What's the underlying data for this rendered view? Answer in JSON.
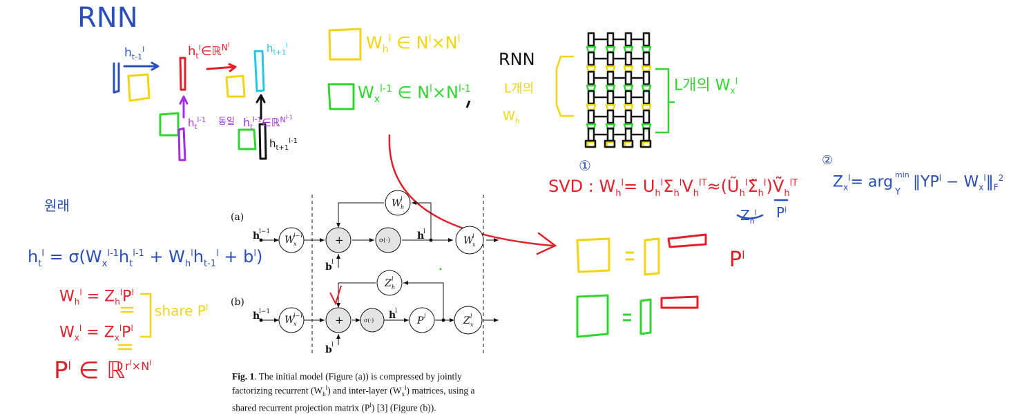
{
  "annotations": {
    "title": "RNN",
    "top_left": {
      "h_prev_label": "h",
      "h_prev_sub": "t-1",
      "h_prev_sup": "l",
      "h_t_label": "h",
      "h_t_sub": "t",
      "h_t_sup": "l",
      "h_t_space": "∈ℝ",
      "h_t_space_sup": "N",
      "h_t_space_sup2": "l",
      "h_next_label": "h",
      "h_next_sub": "t+1",
      "h_next_sup": "l",
      "h_lower_label": "h",
      "h_lower_sub": "t",
      "h_lower_sup": "l-1",
      "same_label": "동일",
      "h_lower2_label": "h",
      "h_lower2_sub": "t",
      "h_lower2_sup": "l-1",
      "h_lower2_space": "∈ℝ",
      "h_lower2_space_sup": "N",
      "h_lower2_space_sup2": "l-1",
      "h_lower3_label": "h",
      "h_lower3_sub": "t+1",
      "h_lower3_sup": "l-1"
    },
    "top_middle": {
      "wh_label": "W",
      "wh_sub": "h",
      "wh_sup": "l",
      "wh_space": "∈ N",
      "wh_dim1_sup": "l",
      "wh_dim_x": "×N",
      "wh_dim2_sup": "l",
      "wx_label": "W",
      "wx_sub": "x",
      "wx_sup": "l-1",
      "wx_space": "∈ N",
      "wx_dim1_sup": "l",
      "wx_dim_x": "×N",
      "wx_dim2_sup": "l-1"
    },
    "top_right": {
      "rnn": "RNN",
      "l_count": "L개의",
      "wh_label": "W",
      "wh_sub": "h",
      "l_count_wx": "L개의 W",
      "l_count_wx_sub": "x",
      "l_count_wx_sup": "l"
    },
    "svd": {
      "num1": "①",
      "text": "SVD : W",
      "text_sub": "h",
      "text_sup": "l",
      "rhs": "= U",
      "rhs_sub": "h",
      "rhs_sup": "l",
      "sigma": "Σ",
      "sigma_sub": "h",
      "sigma_sup": "l",
      "v": "V",
      "v_sub": "h",
      "v_sup": "lT",
      "approx": "≈",
      "approx_u": "(Ũ",
      "approx_u_sub": "h",
      "approx_u_sup": "l",
      "approx_sigma": "Σ̃",
      "approx_sigma_sub": "h",
      "approx_sigma_sup": "l",
      "approx_close": ")",
      "approx_v": "Ṽ",
      "approx_v_sub": "h",
      "approx_v_sup": "lT",
      "z_label": "Z",
      "z_sub": "h",
      "z_sup": "l",
      "p_label": "P",
      "p_sup": "l"
    },
    "p_label": "P",
    "p_sup": "l",
    "zx_formula": {
      "num2": "②",
      "lhs": "Z",
      "lhs_sub": "x",
      "lhs_sup": "l",
      "rhs": "= arg",
      "min": "min",
      "y": "Y",
      "norm": "‖YP",
      "norm_sup": "l",
      "minus": " − W",
      "minus_sub": "x",
      "minus_sup": "l",
      "norm_close": "‖",
      "norm_sub": "F",
      "norm_sup2": "2"
    },
    "left_notes": {
      "korean": "원래",
      "eq1": "h",
      "eq1_sub": "t",
      "eq1_sup": "l",
      "eq1_rhs": " = σ(W",
      "eq1_w_sub": "x",
      "eq1_w_sup": "l-1",
      "eq1_h": "h",
      "eq1_h_sub": "t",
      "eq1_h_sup": "l-1",
      "eq1_plus": " + W",
      "eq1_plus_sub": "h",
      "eq1_plus_sup": "l",
      "eq1_h2": "h",
      "eq1_h2_sub": "t-1",
      "eq1_h2_sup": "l",
      "eq1_b": " + b",
      "eq1_b_sup": "l",
      "eq1_close": ")",
      "eq2": "W",
      "eq2_sub": "h",
      "eq2_sup": "l",
      "eq2_rhs": " = Z",
      "eq2_rhs_sub": "h",
      "eq2_rhs_sup": "l",
      "eq2_p": "P",
      "eq2_p_sup": "l",
      "eq3": "W",
      "eq3_sub": "x",
      "eq3_sup": "l",
      "eq3_rhs": " = Z",
      "eq3_rhs_sub": "x",
      "eq3_rhs_sup": "l",
      "eq3_p": "P",
      "eq3_p_sup": "l",
      "share": "share P",
      "share_sup": "l",
      "eq4": "P",
      "eq4_sup": "l",
      "eq4_rhs": " ∈ ℝ",
      "eq4_dim": "r",
      "eq4_dim_sup": "l",
      "eq4_dim_x": "×N",
      "eq4_dim2_sup": "l"
    }
  },
  "figure": {
    "label_a": "(a)",
    "label_b": "(b)",
    "node_wx_prev": "W",
    "node_wx_prev_sub": "x",
    "node_wx_prev_sup": "l−1",
    "node_plus": "+",
    "node_sigma": "σ(·)",
    "node_wh": "W",
    "node_wh_sub": "h",
    "node_wh_sup": "l",
    "node_wx": "W",
    "node_wx_sub": "x",
    "node_wx_sup": "l",
    "node_zh": "Z",
    "node_zh_sub": "h",
    "node_zh_sup": "l",
    "node_p": "P",
    "node_p_sup": "l",
    "node_zx": "Z",
    "node_zx_sub": "x",
    "node_zx_sup": "l",
    "input_h": "h",
    "input_h_sup": "l−1",
    "output_h": "h",
    "output_h_sup": "l",
    "bias": "b",
    "bias_sup": "l"
  },
  "caption": {
    "bold": "Fig. 1",
    "text": ". The initial model (Figure (a)) is compressed by jointly factorizing recurrent (W",
    "sub_h": "h",
    "sup_1": "l",
    "text2": ") and inter-layer (W",
    "sub_x": "x",
    "sup_2": "l",
    "text3": ") matrices, using a shared recurrent projection matrix (P",
    "sup_3": "l",
    "text4": ") [3] (Figure (b))."
  },
  "colors": {
    "blue": "#2a4fb8",
    "red": "#e0202a",
    "yellow": "#f2d50f",
    "green": "#2ed62e",
    "purple": "#a12ee0",
    "cyan": "#25c7e8",
    "black": "#111111"
  }
}
